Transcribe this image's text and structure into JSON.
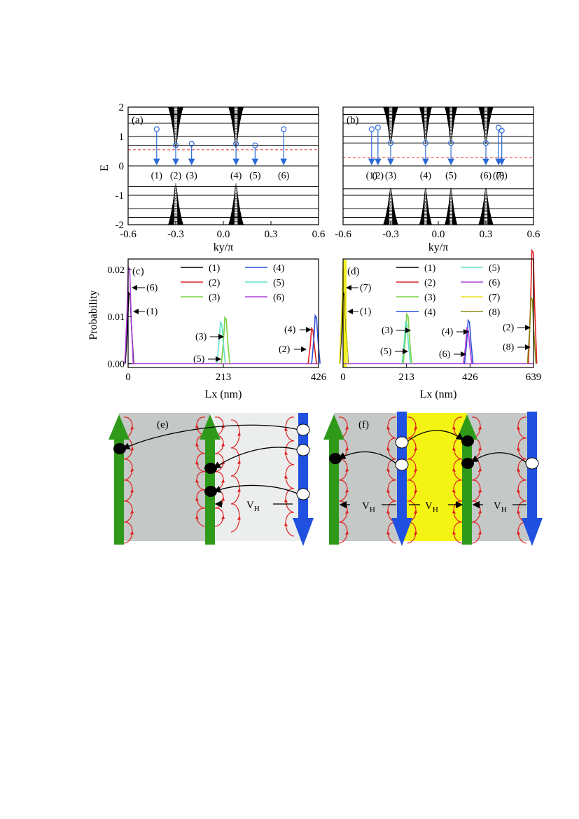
{
  "panels": {
    "a": {
      "label": "(a)",
      "xlabel": "ky/π",
      "ylabel": "E",
      "xlim": [
        -0.6,
        0.6
      ],
      "ylim": [
        -2,
        2
      ],
      "xticks": [
        "-0.6",
        "-0.3",
        "0.0",
        "0.3",
        "0.6"
      ],
      "yticks": [
        "2",
        "1",
        "0",
        "-1",
        "-2"
      ],
      "fermi_level_color": "#e03030",
      "state_labels": [
        "(1)",
        "(2)",
        "(3)",
        "(4)",
        "(5)",
        "(6)"
      ]
    },
    "b": {
      "label": "(b)",
      "xlabel": "ky/π",
      "xlim": [
        -0.6,
        0.6
      ],
      "ylim": [
        -2,
        2
      ],
      "xticks": [
        "-0.6",
        "-0.3",
        "0.0",
        "0.3",
        "0.6"
      ],
      "fermi_level_color": "#e03030",
      "state_labels": [
        "(1)",
        "(2)",
        "(3)",
        "(4)",
        "(5)",
        "(6)",
        "(7)",
        "(8)"
      ]
    },
    "c": {
      "label": "(c)",
      "xlabel": "Lx (nm)",
      "ylabel": "Probability",
      "xticks": [
        "0",
        "213",
        "426"
      ],
      "yticks": [
        "0.02",
        "0.01",
        "0.00"
      ],
      "legend": [
        {
          "label": "(1)",
          "color": "#000000"
        },
        {
          "label": "(4)",
          "color": "#2a4fd8"
        },
        {
          "label": "(2)",
          "color": "#e02020"
        },
        {
          "label": "(5)",
          "color": "#5fe0c8"
        },
        {
          "label": "(3)",
          "color": "#78d040"
        },
        {
          "label": "(6)",
          "color": "#b040d8"
        }
      ],
      "annotations": [
        "(6)",
        "(1)",
        "(3)",
        "(5)",
        "(4)",
        "(2)"
      ]
    },
    "d": {
      "label": "(d)",
      "xlabel": "Lx (nm)",
      "xticks": [
        "0",
        "213",
        "426",
        "639"
      ],
      "legend": [
        {
          "label": "(1)",
          "color": "#000000"
        },
        {
          "label": "(5)",
          "color": "#5fe0c8"
        },
        {
          "label": "(2)",
          "color": "#e02020"
        },
        {
          "label": "(6)",
          "color": "#b040d8"
        },
        {
          "label": "(3)",
          "color": "#78d040"
        },
        {
          "label": "(7)",
          "color": "#e8e020"
        },
        {
          "label": "(4)",
          "color": "#2a4fd8"
        },
        {
          "label": "(8)",
          "color": "#8a8a10"
        }
      ],
      "annotations": [
        "(7)",
        "(1)",
        "(3)",
        "(5)",
        "(4)",
        "(6)",
        "(2)",
        "(8)"
      ]
    },
    "e": {
      "label": "(e)",
      "hall_voltage": "V",
      "hall_sub": "H"
    },
    "f": {
      "label": "(f)",
      "hall_voltage": "V",
      "hall_sub": "H"
    }
  },
  "chart_data": [
    {
      "type": "line",
      "title": "",
      "panel": "(a)",
      "xlabel": "ky/π",
      "ylabel": "E",
      "xlim": [
        -0.6,
        0.6
      ],
      "ylim": [
        -2,
        2
      ],
      "fermi_level": 0.55,
      "state_ky": [
        -0.42,
        -0.3,
        -0.2,
        0.08,
        0.2,
        0.38
      ],
      "state_E": [
        1.25,
        0.7,
        0.75,
        0.75,
        0.7,
        1.25
      ]
    },
    {
      "type": "line",
      "title": "",
      "panel": "(b)",
      "xlabel": "ky/π",
      "xlim": [
        -0.6,
        0.6
      ],
      "ylim": [
        -2,
        2
      ],
      "fermi_level": 0.28,
      "state_ky": [
        -0.42,
        -0.38,
        -0.3,
        -0.08,
        0.08,
        0.3,
        0.38,
        0.4
      ],
      "state_E": [
        1.25,
        1.3,
        0.78,
        0.78,
        0.78,
        0.78,
        1.3,
        1.2
      ]
    },
    {
      "type": "line",
      "title": "",
      "panel": "(c)",
      "xlabel": "Lx (nm)",
      "ylabel": "Probability",
      "xlim": [
        0,
        426
      ],
      "ylim": [
        0,
        0.022
      ],
      "series": [
        {
          "name": "(1)",
          "peak_x": 3,
          "peak_y": 0.015
        },
        {
          "name": "(2)",
          "peak_x": 412,
          "peak_y": 0.0075
        },
        {
          "name": "(3)",
          "peak_x": 218,
          "peak_y": 0.0098
        },
        {
          "name": "(4)",
          "peak_x": 420,
          "peak_y": 0.0102
        },
        {
          "name": "(5)",
          "peak_x": 208,
          "peak_y": 0.0088
        },
        {
          "name": "(6)",
          "peak_x": 2,
          "peak_y": 0.0205
        }
      ]
    },
    {
      "type": "line",
      "title": "",
      "panel": "(d)",
      "xlabel": "Lx (nm)",
      "xlim": [
        0,
        639
      ],
      "ylim": [
        0,
        0.024
      ],
      "series": [
        {
          "name": "(1)",
          "peak_x": 3,
          "peak_y": 0.015
        },
        {
          "name": "(2)",
          "peak_x": 636,
          "peak_y": 0.024
        },
        {
          "name": "(3)",
          "peak_x": 216,
          "peak_y": 0.0105
        },
        {
          "name": "(4)",
          "peak_x": 422,
          "peak_y": 0.0092
        },
        {
          "name": "(5)",
          "peak_x": 212,
          "peak_y": 0.0088
        },
        {
          "name": "(6)",
          "peak_x": 418,
          "peak_y": 0.0075
        },
        {
          "name": "(7)",
          "peak_x": 2,
          "peak_y": 0.02
        },
        {
          "name": "(8)",
          "peak_x": 633,
          "peak_y": 0.014
        }
      ]
    }
  ]
}
